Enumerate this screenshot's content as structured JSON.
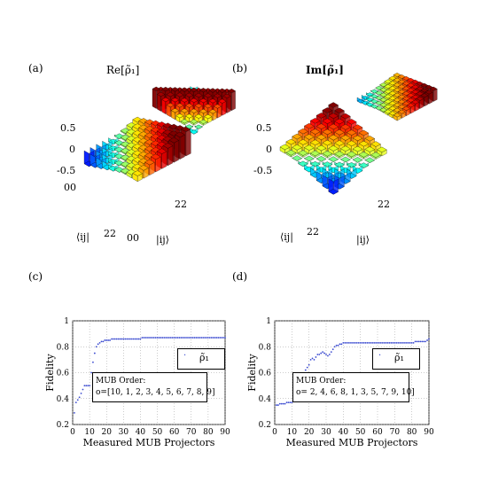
{
  "panels": {
    "a": {
      "label": "(a)",
      "title": "Re[ρ̃₁]",
      "xlabel": "|ij⟩",
      "ylabel": "⟨ij|",
      "zticks": [
        "0.5",
        "0",
        "-0.5"
      ],
      "xtick_first": "00",
      "xtick_last": "22",
      "ytick_first": "00",
      "ytick_last": "22"
    },
    "b": {
      "label": "(b)",
      "title": "Im[ρ̃₁]",
      "xlabel": "|ij⟩",
      "ylabel": "⟨ij|",
      "zticks": [
        "0.5",
        "0",
        "-0.5"
      ],
      "xtick_last": "22",
      "ytick_last": "22"
    },
    "c": {
      "label": "(c)"
    },
    "d": {
      "label": "(d)"
    }
  },
  "colors": {
    "low": "#1030c0",
    "high": "#a01010",
    "line": "#3a4ad0"
  },
  "chart_data": [
    {
      "type": "scatter",
      "panel": "c",
      "xlabel": "Measured MUB Projectors",
      "ylabel": "Fidelity",
      "xlim": [
        0,
        90
      ],
      "ylim": [
        0.2,
        1
      ],
      "xticks": [
        0,
        10,
        20,
        30,
        40,
        50,
        60,
        70,
        80,
        90
      ],
      "yticks": [
        0.2,
        0.4,
        0.6,
        0.8,
        1
      ],
      "grid": true,
      "legend": {
        "label": "ρ̃₁",
        "placement": "center-right"
      },
      "annotation": {
        "title": "MUB Order:",
        "order": "o=[10, 1, 2, 3, 4, 5, 6, 7, 8, 9]"
      },
      "series": [
        {
          "name": "ρ̃₁",
          "x": [
            1,
            2,
            3,
            4,
            5,
            6,
            7,
            8,
            9,
            10,
            11,
            12,
            13,
            14,
            15,
            16,
            17,
            18,
            19,
            20,
            21,
            22,
            23,
            24,
            25,
            26,
            27,
            28,
            29,
            30,
            31,
            32,
            33,
            34,
            35,
            36,
            37,
            38,
            39,
            40,
            41,
            42,
            43,
            44,
            45,
            46,
            47,
            48,
            49,
            50,
            51,
            52,
            53,
            54,
            55,
            56,
            57,
            58,
            59,
            60,
            61,
            62,
            63,
            64,
            65,
            66,
            67,
            68,
            69,
            70,
            71,
            72,
            73,
            74,
            75,
            76,
            77,
            78,
            79,
            80,
            81,
            82,
            83,
            84,
            85,
            86,
            87,
            88,
            89,
            90
          ],
          "y": [
            0.29,
            0.37,
            0.39,
            0.41,
            0.44,
            0.47,
            0.5,
            0.5,
            0.5,
            0.5,
            0.6,
            0.68,
            0.75,
            0.8,
            0.82,
            0.83,
            0.84,
            0.84,
            0.85,
            0.85,
            0.85,
            0.85,
            0.86,
            0.86,
            0.86,
            0.86,
            0.86,
            0.86,
            0.86,
            0.86,
            0.86,
            0.86,
            0.86,
            0.86,
            0.86,
            0.86,
            0.86,
            0.86,
            0.86,
            0.86,
            0.87,
            0.87,
            0.87,
            0.87,
            0.87,
            0.87,
            0.87,
            0.87,
            0.87,
            0.87,
            0.87,
            0.87,
            0.87,
            0.87,
            0.87,
            0.87,
            0.87,
            0.87,
            0.87,
            0.87,
            0.87,
            0.87,
            0.87,
            0.87,
            0.87,
            0.87,
            0.87,
            0.87,
            0.87,
            0.87,
            0.87,
            0.87,
            0.87,
            0.87,
            0.87,
            0.87,
            0.87,
            0.87,
            0.87,
            0.87,
            0.87,
            0.87,
            0.87,
            0.87,
            0.87,
            0.87,
            0.87,
            0.87,
            0.87,
            0.87
          ]
        }
      ]
    },
    {
      "type": "scatter",
      "panel": "d",
      "xlabel": "Measured MUB Projectors",
      "ylabel": "Fidelity",
      "xlim": [
        0,
        90
      ],
      "ylim": [
        0.2,
        1
      ],
      "xticks": [
        0,
        10,
        20,
        30,
        40,
        50,
        60,
        70,
        80,
        90
      ],
      "yticks": [
        0.2,
        0.4,
        0.6,
        0.8,
        1
      ],
      "grid": true,
      "legend": {
        "label": "ρ̃₁",
        "placement": "center-right"
      },
      "annotation": {
        "title": "MUB Order:",
        "order": "o= 2, 4, 6, 8, 1, 3, 5, 7, 9, 10]"
      },
      "series": [
        {
          "name": "ρ̃₁",
          "x": [
            1,
            2,
            3,
            4,
            5,
            6,
            7,
            8,
            9,
            10,
            11,
            12,
            13,
            14,
            15,
            16,
            17,
            18,
            19,
            20,
            21,
            22,
            23,
            24,
            25,
            26,
            27,
            28,
            29,
            30,
            31,
            32,
            33,
            34,
            35,
            36,
            37,
            38,
            39,
            40,
            41,
            42,
            43,
            44,
            45,
            46,
            47,
            48,
            49,
            50,
            51,
            52,
            53,
            54,
            55,
            56,
            57,
            58,
            59,
            60,
            61,
            62,
            63,
            64,
            65,
            66,
            67,
            68,
            69,
            70,
            71,
            72,
            73,
            74,
            75,
            76,
            77,
            78,
            79,
            80,
            81,
            82,
            83,
            84,
            85,
            86,
            87,
            88,
            89,
            90
          ],
          "y": [
            0.35,
            0.35,
            0.36,
            0.36,
            0.36,
            0.36,
            0.37,
            0.37,
            0.37,
            0.37,
            0.38,
            0.39,
            0.4,
            0.43,
            0.46,
            0.5,
            0.55,
            0.62,
            0.64,
            0.66,
            0.7,
            0.71,
            0.7,
            0.72,
            0.74,
            0.74,
            0.75,
            0.76,
            0.75,
            0.74,
            0.73,
            0.74,
            0.76,
            0.78,
            0.8,
            0.81,
            0.81,
            0.82,
            0.82,
            0.83,
            0.83,
            0.83,
            0.83,
            0.83,
            0.83,
            0.83,
            0.83,
            0.83,
            0.83,
            0.83,
            0.83,
            0.83,
            0.83,
            0.83,
            0.83,
            0.83,
            0.83,
            0.83,
            0.83,
            0.83,
            0.83,
            0.83,
            0.83,
            0.83,
            0.83,
            0.83,
            0.83,
            0.83,
            0.83,
            0.83,
            0.83,
            0.83,
            0.83,
            0.83,
            0.83,
            0.83,
            0.83,
            0.83,
            0.83,
            0.83,
            0.83,
            0.84,
            0.84,
            0.84,
            0.84,
            0.84,
            0.84,
            0.84,
            0.85,
            0.86
          ]
        }
      ]
    }
  ]
}
